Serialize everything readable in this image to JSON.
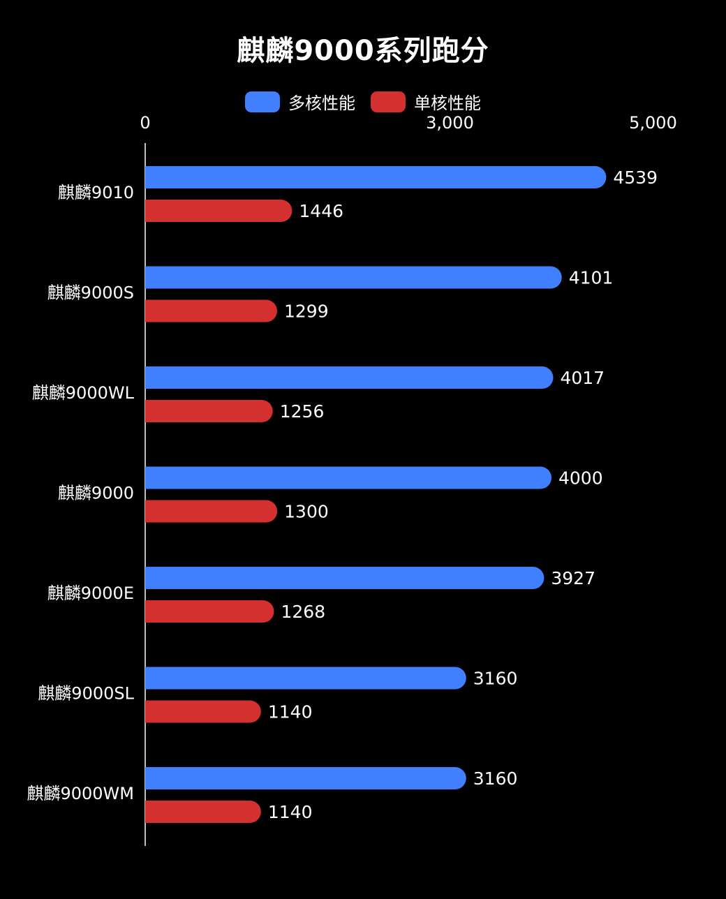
{
  "colors": {
    "background": "#000000",
    "multi": "#4080ff",
    "single": "#d43030",
    "axis": "#ffffff"
  },
  "chart_data": {
    "type": "bar",
    "orientation": "horizontal",
    "title": "麒麟9000系列跑分",
    "categories": [
      "麒麟9010",
      "麒麟9000S",
      "麒麟9000WL",
      "麒麟9000",
      "麒麟9000E",
      "麒麟9000SL",
      "麒麟9000WM"
    ],
    "series": [
      {
        "name": "多核性能",
        "color": "#4080ff",
        "values": [
          4539,
          4101,
          4017,
          4000,
          3927,
          3160,
          3160
        ]
      },
      {
        "name": "单核性能",
        "color": "#d43030",
        "values": [
          1446,
          1299,
          1256,
          1300,
          1268,
          1140,
          1140
        ]
      }
    ],
    "x_ticks": [
      {
        "value": 0,
        "label": "0"
      },
      {
        "value": 3000,
        "label": "3,000"
      },
      {
        "value": 5000,
        "label": "5,000"
      }
    ],
    "xlim": [
      0,
      5000
    ],
    "legend_position": "top-center",
    "grid": false
  }
}
